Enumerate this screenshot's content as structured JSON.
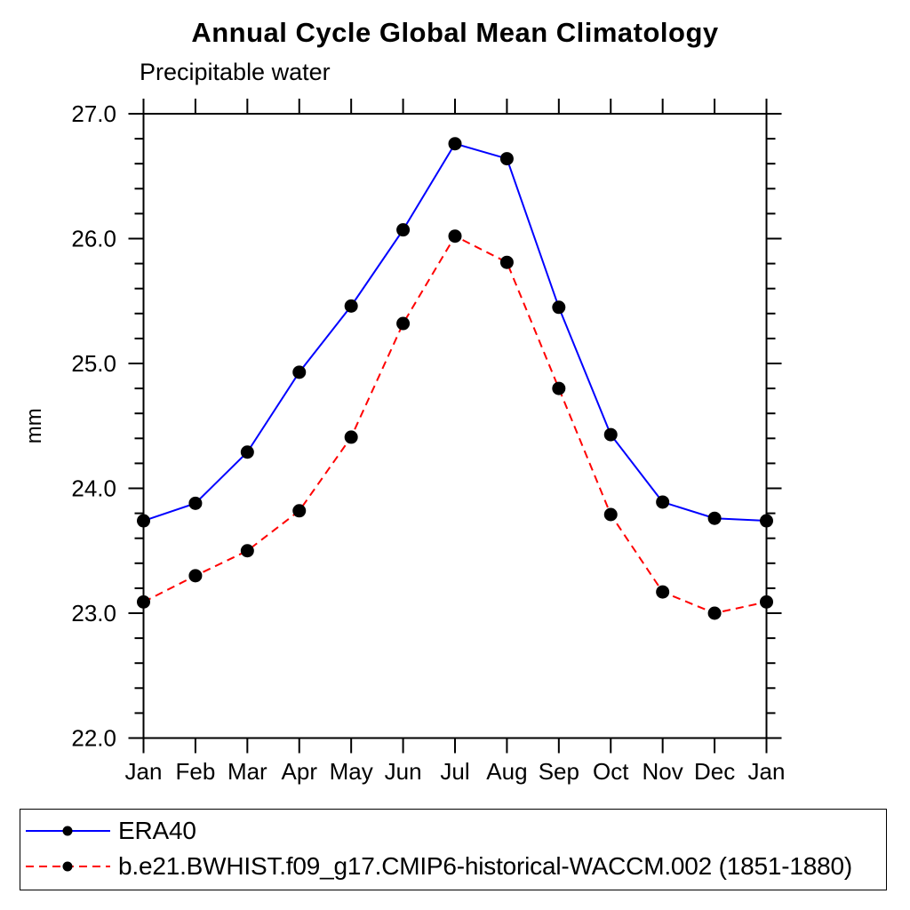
{
  "title": "Annual Cycle Global Mean Climatology",
  "subtitle": "Precipitable water",
  "chart_data": {
    "type": "line",
    "title": "Annual Cycle Global Mean Climatology",
    "subtitle": "Precipitable water",
    "xlabel": "",
    "ylabel": "mm",
    "x_categories": [
      "Jan",
      "Feb",
      "Mar",
      "Apr",
      "May",
      "Jun",
      "Jul",
      "Aug",
      "Sep",
      "Oct",
      "Nov",
      "Dec",
      "Jan"
    ],
    "ylim": [
      22.0,
      27.0
    ],
    "ytick_major": 1.0,
    "ytick_minor": 0.2,
    "ytick_labels": [
      "22.0",
      "23.0",
      "24.0",
      "25.0",
      "26.0",
      "27.0"
    ],
    "grid": false,
    "frame": "box-with-outward-ticks",
    "marker": {
      "shape": "circle",
      "color": "#000000"
    },
    "axis_color": "#000000",
    "legend_position": "bottom-left-box",
    "series": [
      {
        "name": "ERA40",
        "color": "#0000ff",
        "line_style": "solid",
        "values": [
          23.74,
          23.88,
          24.29,
          24.93,
          25.46,
          26.07,
          26.76,
          26.64,
          25.45,
          24.43,
          23.89,
          23.76,
          23.74
        ]
      },
      {
        "name": "b.e21.BWHIST.f09_g17.CMIP6-historical-WACCM.002 (1851-1880)",
        "color": "#ff0000",
        "line_style": "dashed",
        "values": [
          23.09,
          23.3,
          23.5,
          23.82,
          24.41,
          25.32,
          26.02,
          25.81,
          24.8,
          23.79,
          23.17,
          23.0,
          23.09
        ]
      }
    ]
  }
}
